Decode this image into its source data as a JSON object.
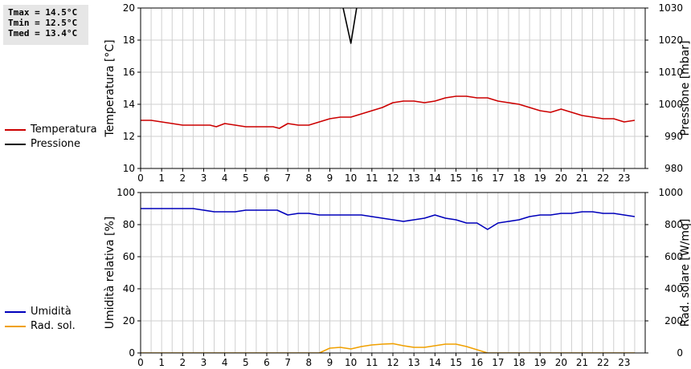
{
  "stats": {
    "tmax": "Tmax = 14.5°C",
    "tmin": "Tmin = 12.5°C",
    "tmed": "Tmed = 13.4°C"
  },
  "colors": {
    "temperatura": "#cc0000",
    "pressione": "#000000",
    "umidita": "#0000bb",
    "radsol": "#f0a000",
    "grid": "#cfcfcf"
  },
  "legend_top": [
    {
      "label": "Temperatura",
      "color": "#cc0000"
    },
    {
      "label": "Pressione",
      "color": "#000000"
    }
  ],
  "legend_bottom": [
    {
      "label": "Umidità",
      "color": "#0000bb"
    },
    {
      "label": "Rad. sol.",
      "color": "#f0a000"
    }
  ],
  "chart_data": [
    {
      "type": "line",
      "ylabel": "Temperatura [°C]",
      "y2label": "Pressione [mbar]",
      "xlim": [
        0,
        24
      ],
      "ylim": [
        10,
        20
      ],
      "y2lim": [
        980,
        1030
      ],
      "xticks": [
        "0",
        "1",
        "2",
        "3",
        "4",
        "5",
        "6",
        "7",
        "8",
        "9",
        "10",
        "11",
        "12",
        "13",
        "14",
        "15",
        "16",
        "17",
        "18",
        "19",
        "20",
        "21",
        "22",
        "23"
      ],
      "yticks": [
        "10",
        "12",
        "14",
        "16",
        "18",
        "20"
      ],
      "y2ticks": [
        "980",
        "990",
        "1000",
        "1010",
        "1020",
        "1030"
      ],
      "grid": true,
      "legend": "left",
      "series": [
        {
          "name": "Temperatura",
          "axis": "left",
          "color": "#cc0000",
          "x": [
            0,
            0.5,
            1,
            1.5,
            2,
            2.5,
            3,
            3.3,
            3.6,
            4,
            4.5,
            5,
            5.5,
            6,
            6.3,
            6.6,
            7,
            7.5,
            8,
            8.5,
            9,
            9.5,
            10,
            10.5,
            11,
            11.5,
            12,
            12.5,
            13,
            13.5,
            14,
            14.5,
            15,
            15.5,
            16,
            16.5,
            17,
            17.5,
            18,
            18.5,
            19,
            19.5,
            20,
            20.5,
            21,
            21.5,
            22,
            22.5,
            23,
            23.5
          ],
          "y": [
            13.0,
            13.0,
            12.9,
            12.8,
            12.7,
            12.7,
            12.7,
            12.7,
            12.6,
            12.8,
            12.7,
            12.6,
            12.6,
            12.6,
            12.6,
            12.5,
            12.8,
            12.7,
            12.7,
            12.9,
            13.1,
            13.2,
            13.2,
            13.4,
            13.6,
            13.8,
            14.1,
            14.2,
            14.2,
            14.1,
            14.2,
            14.4,
            14.5,
            14.5,
            14.4,
            14.4,
            14.2,
            14.1,
            14.0,
            13.8,
            13.6,
            13.5,
            13.7,
            13.5,
            13.3,
            13.2,
            13.1,
            13.1,
            12.9,
            13.0
          ]
        },
        {
          "name": "Pressione",
          "axis": "right",
          "color": "#000000",
          "x": [
            9.6,
            10,
            10.3
          ],
          "y": [
            1031,
            1019,
            1031
          ]
        }
      ]
    },
    {
      "type": "line",
      "ylabel": "Umidità relativa [%]",
      "y2label": "Rad. solare [W/mq]",
      "xlim": [
        0,
        24
      ],
      "ylim": [
        0,
        100
      ],
      "y2lim": [
        0,
        1000
      ],
      "xticks": [
        "0",
        "1",
        "2",
        "3",
        "4",
        "5",
        "6",
        "7",
        "8",
        "9",
        "10",
        "11",
        "12",
        "13",
        "14",
        "15",
        "16",
        "17",
        "18",
        "19",
        "20",
        "21",
        "22",
        "23"
      ],
      "yticks": [
        "0",
        "20",
        "40",
        "60",
        "80",
        "100"
      ],
      "y2ticks": [
        "0",
        "200",
        "400",
        "600",
        "800",
        "1000"
      ],
      "grid": true,
      "legend": "left",
      "series": [
        {
          "name": "Umidità",
          "axis": "left",
          "color": "#0000bb",
          "x": [
            0,
            0.5,
            1,
            1.5,
            2,
            2.5,
            3,
            3.5,
            4,
            4.5,
            5,
            5.5,
            6,
            6.5,
            7,
            7.5,
            8,
            8.5,
            9,
            9.5,
            10,
            10.5,
            11,
            11.5,
            12,
            12.5,
            13,
            13.5,
            14,
            14.5,
            15,
            15.5,
            16,
            16.5,
            17,
            17.5,
            18,
            18.5,
            19,
            19.5,
            20,
            20.5,
            21,
            21.5,
            22,
            22.5,
            23,
            23.5
          ],
          "y": [
            90,
            90,
            90,
            90,
            90,
            90,
            89,
            88,
            88,
            88,
            89,
            89,
            89,
            89,
            86,
            87,
            87,
            86,
            86,
            86,
            86,
            86,
            85,
            84,
            83,
            82,
            83,
            84,
            86,
            84,
            83,
            81,
            81,
            77,
            81,
            82,
            83,
            85,
            86,
            86,
            87,
            87,
            88,
            88,
            87,
            87,
            86,
            85
          ]
        },
        {
          "name": "Rad. sol.",
          "axis": "right",
          "color": "#f0a000",
          "x": [
            0,
            1,
            2,
            3,
            4,
            5,
            6,
            7,
            8,
            8.5,
            9,
            9.5,
            10,
            10.5,
            11,
            11.5,
            12,
            12.5,
            13,
            13.5,
            14,
            14.5,
            15,
            15.5,
            16,
            16.5,
            17,
            18,
            19,
            20,
            21,
            22,
            23,
            23.5
          ],
          "y": [
            0,
            0,
            0,
            0,
            0,
            0,
            0,
            0,
            0,
            0,
            30,
            35,
            25,
            40,
            50,
            55,
            58,
            45,
            35,
            35,
            45,
            55,
            55,
            40,
            20,
            0,
            0,
            0,
            0,
            0,
            0,
            0,
            0,
            0
          ]
        }
      ]
    }
  ]
}
